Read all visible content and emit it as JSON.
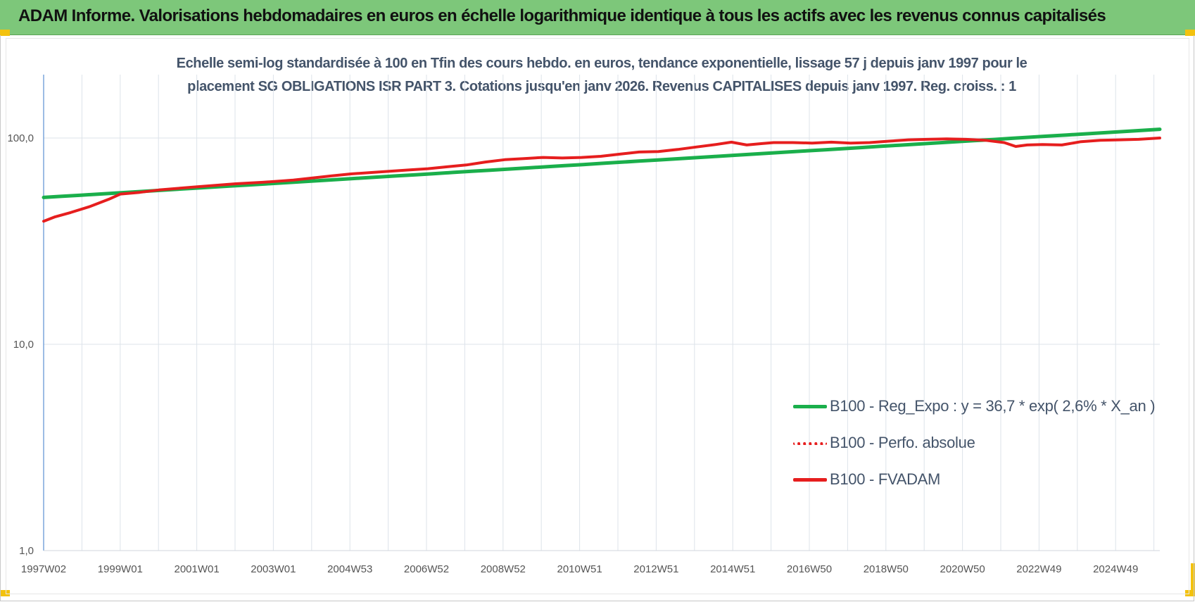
{
  "header": {
    "title": "ADAM Informe. Valorisations hebdomadaires en euros en échelle logarithmique identique à tous les actifs avec les revenus connus capitalisés"
  },
  "chart_data": {
    "type": "line",
    "subtitle_line1": "Echelle semi-log standardisée à 100 en Tfin des cours hebdo. en euros, tendance exponentielle, lissage 57 j depuis janv 1997 pour le",
    "subtitle_line2": "placement SG OBLIGATIONS ISR PART 3. Cotations jusqu'en janv 2026. Revenus CAPITALISES depuis janv 1997. Reg. croiss. : 1",
    "y_scale": "log",
    "ylim": [
      1,
      200
    ],
    "y_ticks": [
      "1,0",
      "10,0",
      "100,0"
    ],
    "x_ticks": [
      "1997W02",
      "1999W01",
      "2001W01",
      "2003W01",
      "2004W53",
      "2006W52",
      "2008W52",
      "2010W51",
      "2012W51",
      "2014W51",
      "2016W50",
      "2018W50",
      "2020W50",
      "2022W49",
      "2024W49"
    ],
    "x_range": [
      1997.0,
      2026.05
    ],
    "grid": "vertical",
    "legend_position": "bottom-right",
    "series": [
      {
        "name": "B100 - Reg_Expo : y = 36,7 * exp( 2,6% *  X_an )",
        "color": "#1aaf4b",
        "style": "solid",
        "x": [
          1997.0,
          2026.05
        ],
        "values": [
          51.5,
          110.2
        ]
      },
      {
        "name": "B100 - Perfo. absolue",
        "color": "#e61e1e",
        "style": "dotted",
        "x": [],
        "values": []
      },
      {
        "name": "B100 - FVADAM",
        "color": "#e61e1e",
        "style": "solid",
        "x": [
          1997.0,
          1997.3,
          1997.7,
          1998.2,
          1998.7,
          1999.0,
          1999.5,
          2000.0,
          2000.5,
          2001.0,
          2001.5,
          2002.0,
          2002.7,
          2003.5,
          2004.0,
          2004.5,
          2005.0,
          2005.5,
          2006.0,
          2006.5,
          2007.0,
          2007.5,
          2008.0,
          2008.5,
          2009.0,
          2009.5,
          2010.0,
          2010.5,
          2011.0,
          2011.5,
          2012.0,
          2012.5,
          2013.0,
          2013.5,
          2014.0,
          2014.5,
          2014.9,
          2015.3,
          2015.7,
          2016.0,
          2016.5,
          2017.0,
          2017.5,
          2018.0,
          2018.5,
          2019.0,
          2019.5,
          2020.0,
          2020.5,
          2021.0,
          2021.5,
          2022.0,
          2022.3,
          2022.6,
          2023.0,
          2023.5,
          2024.0,
          2024.5,
          2025.0,
          2025.5,
          2026.05
        ],
        "values": [
          39.5,
          41.5,
          43.5,
          46.5,
          50.5,
          53.5,
          54.5,
          56.0,
          57.0,
          58.0,
          59.0,
          60.0,
          61.0,
          62.5,
          64.0,
          65.5,
          67.0,
          68.0,
          69.0,
          70.0,
          71.0,
          72.5,
          74.0,
          76.5,
          78.5,
          79.5,
          80.5,
          80.0,
          80.5,
          81.5,
          83.5,
          85.5,
          86.0,
          88.0,
          90.5,
          93.0,
          95.5,
          92.5,
          94.0,
          95.0,
          95.0,
          94.5,
          95.5,
          94.5,
          95.0,
          96.5,
          98.0,
          98.5,
          99.0,
          98.5,
          97.5,
          95.0,
          91.0,
          92.5,
          93.0,
          92.5,
          96.0,
          97.5,
          98.0,
          98.5,
          100.0
        ]
      }
    ]
  }
}
